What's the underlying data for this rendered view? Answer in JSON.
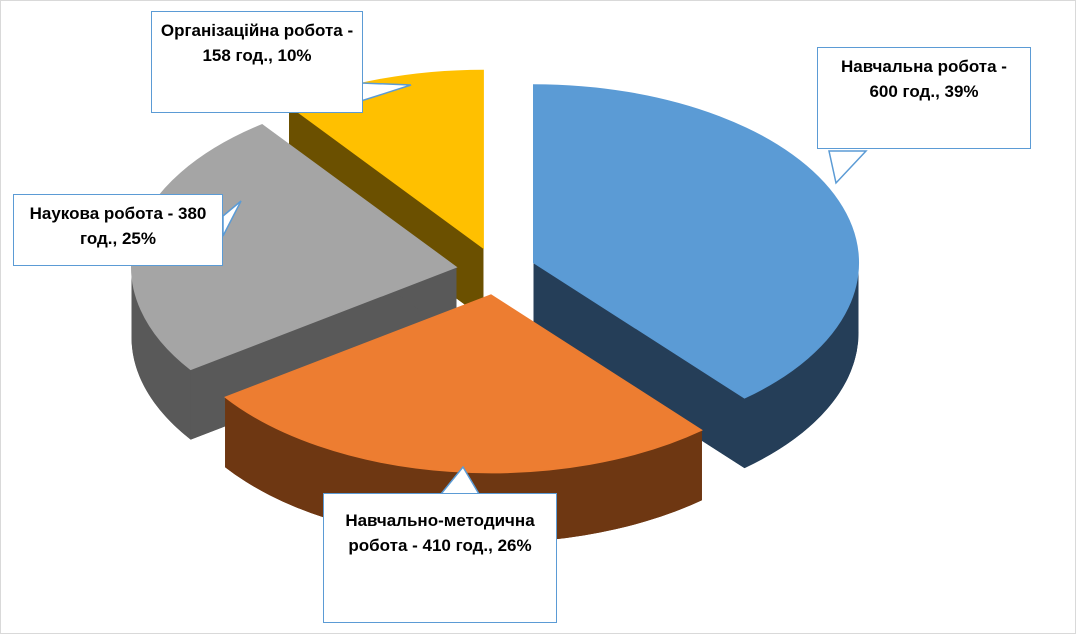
{
  "chart_data": {
    "type": "pie",
    "values": [
      600,
      410,
      380,
      158
    ],
    "value_labels": [
      "Навчальна робота - 600 год., 39%",
      "Навчально-методична робота - 410 год., 26%",
      "Наукова робота - 380 год., 25%",
      "Організаційна робота - 158 год., 10%"
    ],
    "colors": [
      "#5b9bd5",
      "#ed7d31",
      "#a5a5a5",
      "#ffc000"
    ],
    "side_colors": [
      "#253e58",
      "#6e3712",
      "#595959",
      "#6b5000"
    ]
  }
}
